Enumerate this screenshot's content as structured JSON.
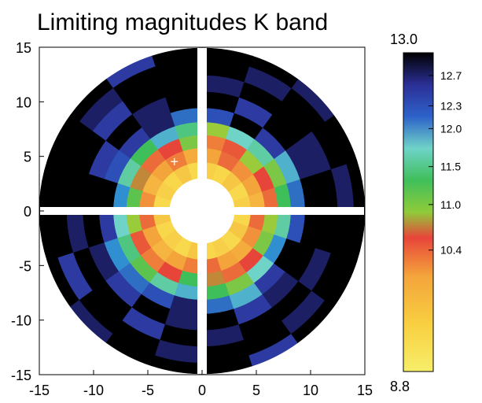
{
  "chart_data": {
    "type": "heatmap",
    "geometry": "polar",
    "title": "Limiting magnitudes K band",
    "xlim": [
      -15,
      15
    ],
    "ylim": [
      -15,
      15
    ],
    "x_ticks": [
      "-15",
      "-10",
      "-5",
      "0",
      "5",
      "10",
      "15"
    ],
    "y_ticks": [
      "15",
      "10",
      "5",
      "0",
      "-5",
      "-10",
      "-15"
    ],
    "grid": false,
    "colorbar": {
      "min_label": "8.8",
      "max_label": "13.0",
      "range": [
        8.8,
        13.0
      ],
      "ticks": [
        "12.7",
        "12.3",
        "12.0",
        "11.5",
        "11.0",
        "10.4"
      ],
      "placement": "right"
    },
    "annotation": {
      "marker": "+",
      "x": -2.5,
      "y": 4.5
    },
    "rings": [
      {
        "r0": 3.0,
        "r1": 4.5,
        "values": [
          10.5,
          10.3,
          10.6,
          10.4,
          10.5,
          10.3,
          10.6,
          10.4,
          10.5,
          10.3,
          10.6,
          10.4,
          10.5,
          10.3,
          10.6,
          10.4,
          10.5,
          10.3,
          10.6,
          10.4
        ]
      },
      {
        "r0": 4.5,
        "r1": 5.8,
        "values": [
          10.8,
          11.0,
          11.1,
          11.3,
          11.0,
          10.9,
          11.2,
          11.0,
          10.8,
          11.1,
          11.3,
          11.0,
          10.8,
          11.0,
          11.2,
          11.3,
          11.0,
          10.9,
          11.1,
          11.3
        ]
      },
      {
        "r0": 5.8,
        "r1": 7.0,
        "values": [
          11.3,
          11.5,
          11.7,
          11.4,
          11.2,
          11.8,
          11.5,
          11.3,
          11.6,
          11.9,
          11.7,
          11.4,
          11.2,
          11.5,
          12.0,
          11.6,
          11.3,
          11.5,
          11.8,
          11.7
        ]
      },
      {
        "r0": 7.0,
        "r1": 8.2,
        "values": [
          12.0,
          11.8,
          12.2,
          12.3,
          11.7,
          12.1,
          12.4,
          12.0,
          12.2,
          12.5,
          12.3,
          12.1,
          11.9,
          12.2,
          12.4,
          12.0,
          11.8,
          12.3,
          12.5,
          12.2
        ]
      },
      {
        "r0": 8.2,
        "r1": 9.5,
        "values": [
          12.6,
          12.4,
          12.8,
          13.0,
          12.7,
          12.6,
          12.9,
          12.8,
          12.7,
          13.0,
          12.8,
          12.5,
          12.6,
          12.7,
          12.9,
          12.6,
          12.4,
          12.8,
          13.0,
          12.7
        ]
      },
      {
        "r0": 9.5,
        "r1": 11.0,
        "values": [
          13.0,
          12.9,
          13.0,
          12.8,
          13.0,
          13.0,
          12.9,
          13.0,
          12.8,
          13.0,
          13.0,
          12.9,
          12.8,
          13.0,
          12.9,
          13.0,
          12.8,
          12.9,
          13.0,
          13.0
        ]
      },
      {
        "r0": 11.0,
        "r1": 12.5,
        "values": [
          13.0,
          12.9,
          13.0,
          13.0,
          12.9,
          13.0,
          13.0,
          12.8,
          13.0,
          13.0,
          12.9,
          13.0,
          13.0,
          12.8,
          13.0,
          12.9,
          13.0,
          13.0,
          12.9,
          13.0
        ]
      },
      {
        "r0": 12.5,
        "r1": 14.0,
        "values": [
          12.9,
          13.0,
          13.0,
          12.9,
          13.0,
          13.0,
          13.0,
          12.9,
          13.0,
          13.0,
          13.0,
          12.8,
          13.0,
          13.0,
          12.9,
          13.0,
          13.0,
          12.9,
          13.0,
          13.0
        ]
      },
      {
        "r0": 14.0,
        "r1": 15.0,
        "values": [
          13.0,
          13.0,
          12.9,
          13.0,
          13.0,
          13.0,
          12.8,
          13.0,
          13.0,
          13.0,
          13.0,
          13.0,
          12.9,
          13.0,
          13.0,
          13.0,
          12.8,
          13.0,
          13.0,
          13.0
        ]
      }
    ]
  }
}
